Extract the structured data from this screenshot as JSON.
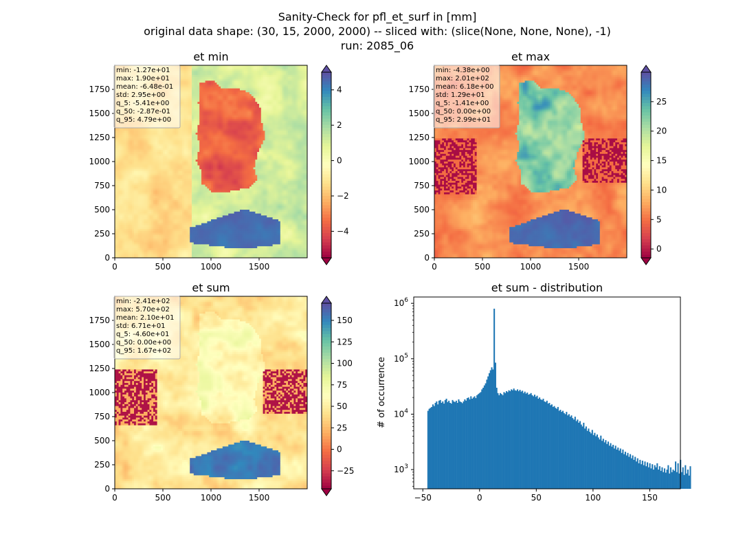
{
  "figure": {
    "title_line1": "Sanity-Check for pfl_et_surf in [mm]",
    "title_line2": "original data shape: (30, 15, 2000, 2000) -- sliced with: (slice(None, None, None), -1)",
    "title_line3": "run: 2085_06"
  },
  "colormap": {
    "name": "Spectral",
    "stops": [
      "#9e0142",
      "#d53e4f",
      "#f46d43",
      "#fdae61",
      "#fee08b",
      "#ffffbf",
      "#e6f598",
      "#abdda4",
      "#66c2a5",
      "#3288bd",
      "#5e4fa2"
    ]
  },
  "chart_data": [
    {
      "type": "heatmap",
      "title": "et min",
      "xlim": [
        0,
        2000
      ],
      "ylim": [
        0,
        2000
      ],
      "xticks": [
        0,
        500,
        1000,
        1500
      ],
      "yticks": [
        0,
        250,
        500,
        750,
        1000,
        1250,
        1500,
        1750
      ],
      "color_range": [
        -5.5,
        5.0
      ],
      "colorbar_ticks": [
        -4,
        -2,
        0,
        2,
        4
      ],
      "stats": [
        "min: -1.27e+01",
        "max: 1.90e+01",
        "mean: -6.48e-01",
        "std: 2.95e+00",
        "q_5: -5.41e+00",
        "q_50: -2.87e-01",
        "q_95: 4.79e+00"
      ]
    },
    {
      "type": "heatmap",
      "title": "et max",
      "xlim": [
        0,
        2000
      ],
      "ylim": [
        0,
        2000
      ],
      "xticks": [
        0,
        500,
        1000,
        1500
      ],
      "yticks": [
        0,
        250,
        500,
        750,
        1000,
        1250,
        1500,
        1750
      ],
      "color_range": [
        -1.5,
        30.0
      ],
      "colorbar_ticks": [
        0,
        5,
        10,
        15,
        20,
        25
      ],
      "stats": [
        "min: -4.38e+00",
        "max: 2.01e+02",
        "mean: 6.18e+00",
        "std: 1.29e+01",
        "q_5: -1.41e+00",
        "q_50: 0.00e+00",
        "q_95: 2.99e+01"
      ]
    },
    {
      "type": "heatmap",
      "title": "et sum",
      "xlim": [
        0,
        2000
      ],
      "ylim": [
        0,
        2000
      ],
      "xticks": [
        0,
        500,
        1000,
        1500
      ],
      "yticks": [
        0,
        250,
        500,
        750,
        1000,
        1250,
        1500,
        1750
      ],
      "color_range": [
        -46,
        170
      ],
      "colorbar_ticks": [
        -25,
        0,
        25,
        50,
        75,
        100,
        125,
        150
      ],
      "stats": [
        "min: -2.41e+02",
        "max: 5.70e+02",
        "mean: 2.10e+01",
        "std: 6.71e+01",
        "q_5: -4.60e+01",
        "q_50: 0.00e+00",
        "q_95: 1.67e+02"
      ]
    },
    {
      "type": "bar",
      "title": "et sum - distribution",
      "xlabel": "",
      "ylabel": "# of occurrence",
      "xlim": [
        -58,
        177
      ],
      "ylog": true,
      "ylim": [
        450,
        1300000
      ],
      "xticks": [
        -50,
        0,
        50,
        100,
        150
      ],
      "yticks": [
        1000,
        10000,
        100000,
        1000000
      ],
      "bin_start": -46,
      "bin_width": 1.08,
      "color": "#1f77b4",
      "counts": [
        11500,
        12500,
        13000,
        13500,
        15000,
        14000,
        16000,
        17000,
        15000,
        17500,
        18000,
        16000,
        17000,
        15500,
        18000,
        19000,
        16500,
        17500,
        16000,
        15500,
        18000,
        17000,
        16500,
        17500,
        16000,
        18500,
        17000,
        16500,
        15800,
        17000,
        18500,
        17500,
        19500,
        20000,
        18500,
        21000,
        19000,
        20000,
        21000,
        19500,
        22000,
        23000,
        24000,
        25000,
        28000,
        30000,
        33000,
        36000,
        42000,
        48000,
        55000,
        62000,
        70000,
        64000,
        800000,
        85000,
        30000,
        24000,
        22000,
        24000,
        23000,
        22000,
        25000,
        24000,
        26000,
        25000,
        27000,
        26000,
        28000,
        27000,
        29000,
        27000,
        26500,
        28000,
        26000,
        27500,
        25500,
        26500,
        24000,
        25500,
        23500,
        24500,
        22500,
        23000,
        24000,
        22000,
        21000,
        22500,
        20500,
        21500,
        19000,
        20000,
        18500,
        18000,
        19000,
        17000,
        16500,
        17500,
        15500,
        16000,
        14500,
        15000,
        13500,
        14000,
        13000,
        12500,
        13500,
        11500,
        12000,
        11000,
        11500,
        10500,
        10000,
        11000,
        9500,
        10000,
        9000,
        9500,
        8500,
        8000,
        9000,
        7500,
        8000,
        7000,
        7500,
        6500,
        6000,
        7000,
        5500,
        6000,
        5000,
        5500,
        4800,
        4500,
        5200,
        4200,
        4600,
        4000,
        4300,
        3800,
        3500,
        4100,
        3300,
        3600,
        3100,
        3400,
        2900,
        3200,
        2700,
        3000,
        2600,
        2800,
        2400,
        2700,
        2300,
        2500,
        2200,
        2400,
        2000,
        2300,
        1900,
        2100,
        1800,
        2000,
        1700,
        1900,
        1600,
        1800,
        1500,
        1700,
        1400,
        1600,
        1300,
        1500,
        1250,
        1450,
        1200,
        1400,
        1150,
        1350,
        1100,
        1300,
        1050,
        1250,
        1000,
        1200,
        1100,
        1300,
        1000,
        1150,
        950,
        1100,
        900,
        1050,
        880,
        1000,
        1200,
        850,
        1100,
        900,
        1000,
        950,
        1400,
        900,
        1300,
        850,
        1500,
        900,
        1100,
        800,
        1200,
        850,
        1000,
        780,
        1150
      ]
    }
  ]
}
